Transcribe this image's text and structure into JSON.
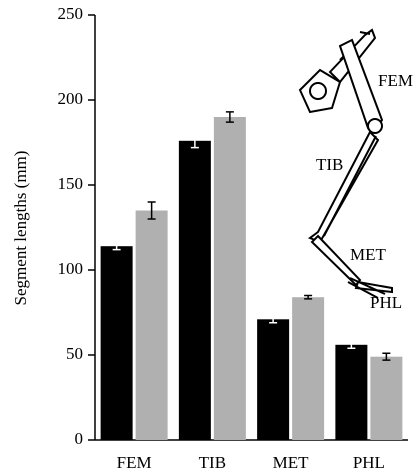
{
  "chart_data": {
    "type": "bar",
    "y_label": "Segment lengths (mm)",
    "categories": [
      "FEM",
      "TIB",
      "MET",
      "PHL"
    ],
    "series": [
      {
        "color": "#000000",
        "values": [
          114,
          176,
          71,
          56
        ],
        "errors": [
          2,
          4,
          2,
          2
        ]
      },
      {
        "color": "#b0b0b0",
        "values": [
          135,
          190,
          84,
          49
        ],
        "errors": [
          5,
          3,
          1,
          2
        ]
      }
    ],
    "ylim": [
      0,
      250
    ],
    "yticks": [
      0,
      50,
      100,
      150,
      200,
      250
    ],
    "annotations": [
      "FEM",
      "TIB",
      "MET",
      "PHL"
    ]
  }
}
